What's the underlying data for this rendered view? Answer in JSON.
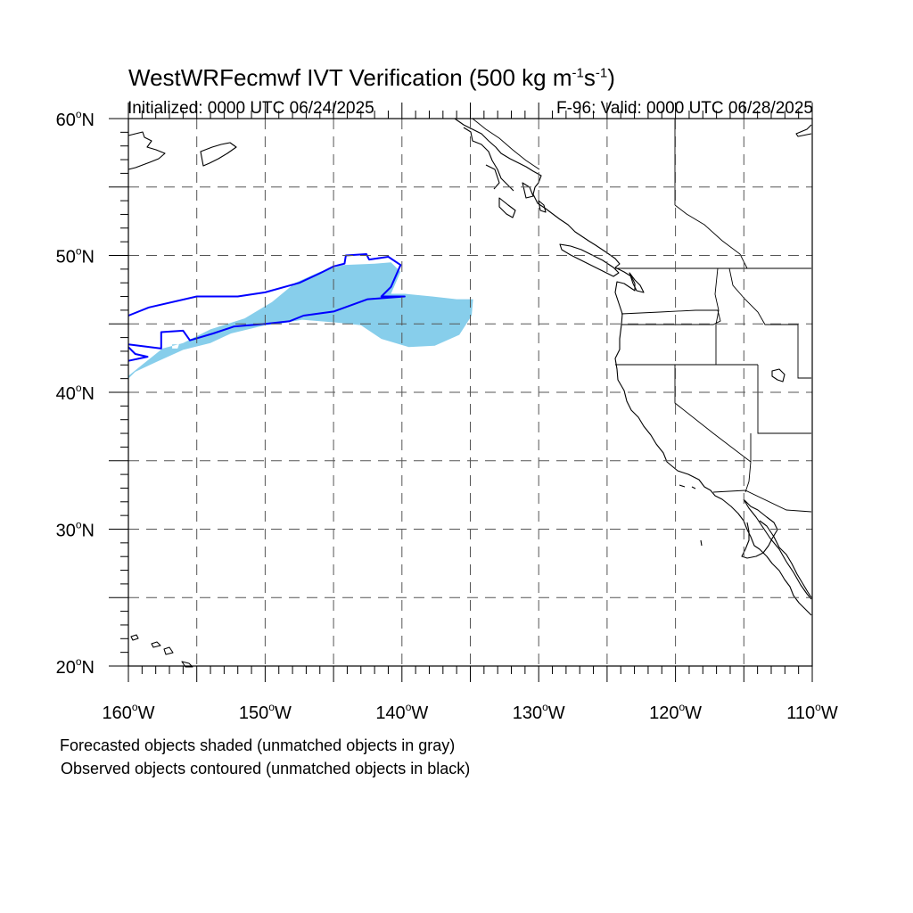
{
  "title": {
    "main": "WestWRFecmwf IVT Verification (500 kg m",
    "exp1": "-1",
    "mid": "s",
    "exp2": "-1",
    "close": ")"
  },
  "init_text": "Initialized: 0000 UTC 06/24/2025",
  "valid_text": "F-96: Valid: 0000 UTC 06/28/2025",
  "footnotes": [
    "Forecasted objects shaded (unmatched objects in gray)",
    "Observed objects contoured (unmatched objects in black)"
  ],
  "map": {
    "lon_range": [
      -160,
      -110
    ],
    "lat_range": [
      20,
      60
    ],
    "lat_ticks": [
      {
        "value": 20,
        "label": "20",
        "hemi": "N"
      },
      {
        "value": 30,
        "label": "30",
        "hemi": "N"
      },
      {
        "value": 40,
        "label": "40",
        "hemi": "N"
      },
      {
        "value": 50,
        "label": "50",
        "hemi": "N"
      },
      {
        "value": 60,
        "label": "60",
        "hemi": "N"
      }
    ],
    "lon_ticks": [
      {
        "value": -160,
        "label": "160",
        "hemi": "W"
      },
      {
        "value": -150,
        "label": "150",
        "hemi": "W"
      },
      {
        "value": -140,
        "label": "140",
        "hemi": "W"
      },
      {
        "value": -130,
        "label": "130",
        "hemi": "W"
      },
      {
        "value": -120,
        "label": "120",
        "hemi": "W"
      },
      {
        "value": -110,
        "label": "110",
        "hemi": "W"
      }
    ],
    "degree_symbol": "o",
    "gridlines": "dashed every 5 degrees",
    "colors": {
      "forecast_shade": "#87ceeb",
      "observed_contour": "#0000ff",
      "coastline": "#000000",
      "grid": "#555555"
    },
    "forecast_object": {
      "outline": [
        [
          -160,
          41.2
        ],
        [
          -159,
          42.0
        ],
        [
          -157.5,
          43.2
        ],
        [
          -156,
          43.6
        ],
        [
          -154,
          44.6
        ],
        [
          -151.5,
          45.4
        ],
        [
          -149.5,
          46.6
        ],
        [
          -147.8,
          48.0
        ],
        [
          -146,
          48.8
        ],
        [
          -144.3,
          49.3
        ],
        [
          -142,
          49.4
        ],
        [
          -140.8,
          49.5
        ],
        [
          -140.1,
          48.8
        ],
        [
          -140.8,
          47.2
        ],
        [
          -139.8,
          47.2
        ],
        [
          -137.8,
          47.0
        ],
        [
          -136.0,
          46.8
        ],
        [
          -134.8,
          46.8
        ],
        [
          -134.9,
          45.6
        ],
        [
          -135.8,
          44.2
        ],
        [
          -137.6,
          43.4
        ],
        [
          -139.5,
          43.3
        ],
        [
          -141.5,
          43.9
        ],
        [
          -143.0,
          44.9
        ],
        [
          -144.8,
          45.1
        ],
        [
          -147.3,
          45.3
        ],
        [
          -149.0,
          45.0
        ],
        [
          -150.0,
          44.9
        ],
        [
          -152.5,
          44.3
        ],
        [
          -154.0,
          43.6
        ],
        [
          -156.0,
          43.1
        ],
        [
          -158.0,
          42.2
        ],
        [
          -159.5,
          41.5
        ],
        [
          -160,
          41.0
        ]
      ],
      "holes": [
        [
          [
            -156.8,
            43.2
          ],
          [
            -156.4,
            43.2
          ],
          [
            -156.3,
            43.5
          ],
          [
            -156.8,
            43.5
          ]
        ]
      ]
    },
    "observed_contours": [
      [
        [
          -160,
          45.6
        ],
        [
          -158.5,
          46.2
        ],
        [
          -155,
          47.0
        ],
        [
          -152,
          47.0
        ],
        [
          -150,
          47.3
        ],
        [
          -147.5,
          48.0
        ],
        [
          -146.0,
          48.7
        ],
        [
          -145.0,
          49.2
        ],
        [
          -144.2,
          49.4
        ],
        [
          -144.1,
          50.0
        ],
        [
          -142.6,
          50.1
        ],
        [
          -142.4,
          49.7
        ],
        [
          -141.0,
          49.9
        ],
        [
          -140.1,
          49.3
        ],
        [
          -140.8,
          47.7
        ],
        [
          -141.5,
          47.0
        ],
        [
          -139.8,
          47.0
        ],
        [
          -142.5,
          46.8
        ],
        [
          -145.0,
          45.9
        ],
        [
          -147.2,
          45.6
        ],
        [
          -148.2,
          45.2
        ],
        [
          -150.0,
          45.0
        ],
        [
          -152.3,
          44.8
        ],
        [
          -153.8,
          44.3
        ],
        [
          -155.5,
          43.8
        ],
        [
          -156.0,
          44.5
        ],
        [
          -157.6,
          44.4
        ],
        [
          -157.6,
          43.2
        ],
        [
          -160,
          43.5
        ]
      ],
      [
        [
          -160,
          43.3
        ],
        [
          -159.5,
          42.8
        ],
        [
          -158.6,
          42.6
        ],
        [
          -160,
          42.3
        ]
      ]
    ]
  }
}
